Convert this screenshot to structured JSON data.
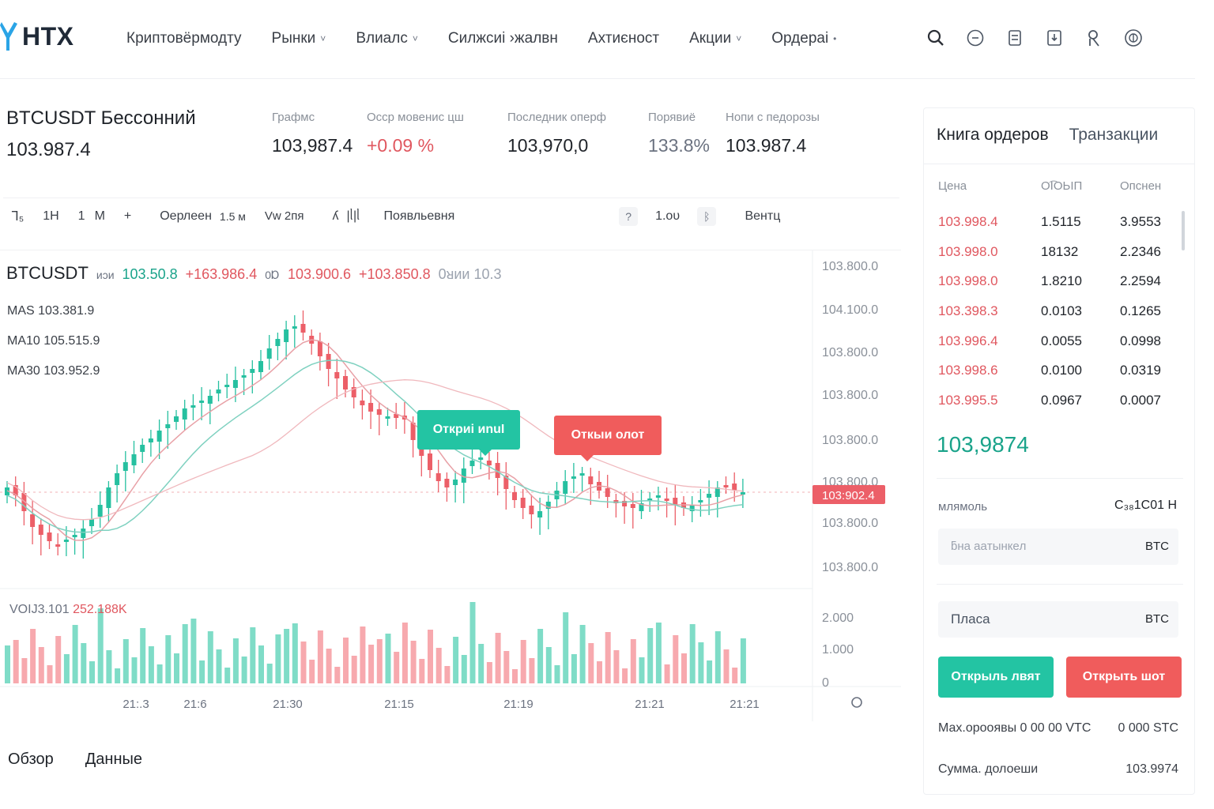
{
  "header": {
    "logo": "HTX",
    "nav": [
      {
        "label": "Криптовёрмодту",
        "dropdown": false
      },
      {
        "label": "Рынки",
        "dropdown": true
      },
      {
        "label": "Влиалс",
        "dropdown": true
      },
      {
        "label": "Силжсиі ›жалвн",
        "dropdown": false
      },
      {
        "label": "Ахтиєност",
        "dropdown": false
      },
      {
        "label": "Акции",
        "dropdown": true
      },
      {
        "label": "Ордераі",
        "dropdown": false
      }
    ],
    "icons": [
      "search-icon",
      "chat-icon",
      "wallet-icon",
      "download-icon",
      "user-icon",
      "globe-icon"
    ]
  },
  "ticker": {
    "pair": "BTCUSDT Бессонний",
    "price": "103.987.4",
    "stats": [
      {
        "label": "Графмс",
        "value": "103,987.4"
      },
      {
        "label": "Осср мовенис цш",
        "value": "+0.09 %"
      },
      {
        "label": "Последник оперф",
        "value": "103,970,0"
      },
      {
        "label": "Порявиё",
        "value": "133.8%"
      },
      {
        "label": "Нопи с педорозы",
        "value": "103.987.4"
      }
    ]
  },
  "toolbar": {
    "items": [
      "ᒣ₅",
      "1H",
      "1",
      "M",
      "+",
      "Оерлеен",
      "1.5 м",
      "Vw 2пя",
      "ʎ",
      "|ᥣ|ᥣ",
      "Появльевня"
    ],
    "right": [
      "?",
      "1.ᴏᴜ",
      "ᛒ",
      "Вентц"
    ]
  },
  "chart": {
    "symbol": "BTCUSDT",
    "symbol_tag": "ᴎᴐᴎ",
    "o_val": "103.50.8",
    "h_val": "+163.986.4",
    "l_tag": "0Ɒ",
    "l_val": "103.900.6",
    "c_val": "+103.850.8",
    "extra": "0ᴚᴎᴎ 10.3",
    "ma5": "MAS  103.381.9",
    "ma10": "MA10  105.515.9",
    "ma30": "MA30  103.952.9",
    "vol_label": "VOIJ3.101",
    "vol_value": "252.188K",
    "callout_long": "Откриі ᴎnuI",
    "callout_short": "Откыи олот",
    "current_price_tag": "103:902.4",
    "y_labels": [
      "103.800.0",
      "104.100.0",
      "103.800.0",
      "103.800.0",
      "103.800.0",
      "103.800.0",
      "103.800.0",
      "103.800.0"
    ],
    "vol_y_labels": [
      "2.000",
      "1.000",
      "0"
    ],
    "x_labels": [
      "21:.3",
      "21:6",
      "21:30",
      "21:15",
      "21:19",
      "21:21",
      "21:21"
    ]
  },
  "bottom_tabs": [
    "Обзор",
    "Данные"
  ],
  "orderbook": {
    "tab_active": "Книга ордеров",
    "tab_inactive": "Транзакции",
    "headers": [
      "Цена",
      "Ο͡ΙΟЬΙΠ",
      "Опснен"
    ],
    "rows": [
      {
        "price": "103.998.4",
        "amount": "1.5115",
        "total": "3.9553"
      },
      {
        "price": "103.998.0",
        "amount": "18132",
        "total": "2.2346"
      },
      {
        "price": "103.998.0",
        "amount": "1.8210",
        "total": "2.2594"
      },
      {
        "price": "103.398.3",
        "amount": "0.0103",
        "total": "0.1265"
      },
      {
        "price": "103.996.4",
        "amount": "0.0055",
        "total": "0.0998"
      },
      {
        "price": "103.998.6",
        "amount": "0.0100",
        "total": "0.0319"
      },
      {
        "price": "103.995.5",
        "amount": "0.0967",
        "total": "0.0007"
      }
    ],
    "last_price": "103,9874"
  },
  "order_form": {
    "mode_label": "млямоль",
    "mode_value": "С₃₈1С01 Н",
    "price_placeholder": "ƃнa aaтынкeл",
    "price_unit": "BTC",
    "amount_placeholder": "Пласа",
    "amount_unit": "BTC",
    "buy_label": "Открыль лвят",
    "sell_label": "Открыть шот",
    "max_label": "Мах.орооявы  0 00 00 VTC",
    "max_value": "0 000 STC",
    "sum_label": "Сумма. долоеши",
    "sum_value": "103.9974"
  }
}
